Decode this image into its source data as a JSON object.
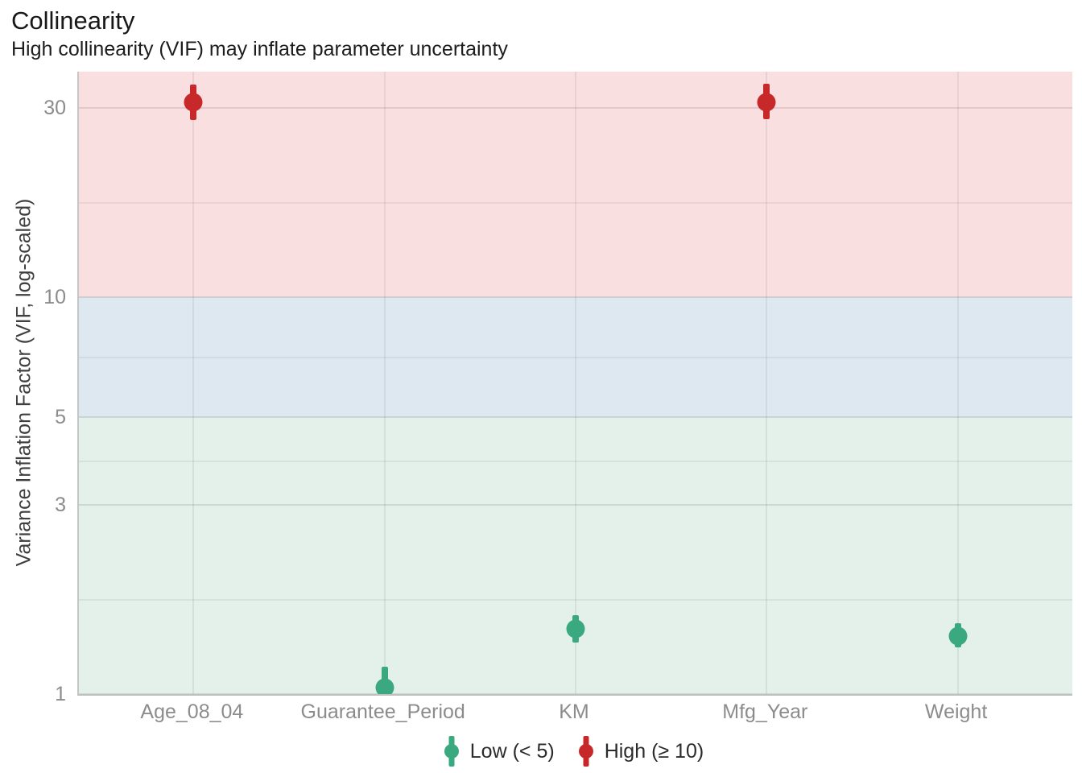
{
  "chart_data": {
    "type": "pointrange",
    "title": "Collinearity",
    "subtitle": "High collinearity (VIF) may inflate parameter uncertainty",
    "ylabel": "Variance Inflation Factor (VIF, log-scaled)",
    "xlabel": "",
    "categories": [
      "Age_08_04",
      "Guarantee_Period",
      "KM",
      "Mfg_Year",
      "Weight"
    ],
    "points": [
      {
        "category": "Age_08_04",
        "vif": 31.0,
        "ci_low": 28.0,
        "ci_high": 34.5,
        "level": "High"
      },
      {
        "category": "Guarantee_Period",
        "vif": 1.04,
        "ci_low": 0.98,
        "ci_high": 1.17,
        "level": "Low"
      },
      {
        "category": "KM",
        "vif": 1.46,
        "ci_low": 1.35,
        "ci_high": 1.58,
        "level": "Low"
      },
      {
        "category": "Mfg_Year",
        "vif": 31.1,
        "ci_low": 28.1,
        "ci_high": 34.6,
        "level": "High"
      },
      {
        "category": "Weight",
        "vif": 1.4,
        "ci_low": 1.31,
        "ci_high": 1.51,
        "level": "Low"
      }
    ],
    "y_axis": {
      "scale": "log10",
      "ticks": [
        30,
        10,
        5,
        3,
        1
      ],
      "minor_ticks": [
        17.32,
        7.07,
        3.87,
        1.73
      ],
      "range": [
        1,
        37.1
      ]
    },
    "bands": [
      {
        "from": 1,
        "to": 5,
        "color": "#e3f1ea",
        "meaning": "low"
      },
      {
        "from": 5,
        "to": 10,
        "color": "#dde8f1",
        "meaning": "moderate"
      },
      {
        "from": 10,
        "to": 37.1,
        "color": "#fadfe1",
        "meaning": "high"
      }
    ],
    "legend": [
      {
        "label": "Low (< 5)",
        "color": "#3aa97f"
      },
      {
        "label": "High (≥ 10)",
        "color": "#c7292b"
      }
    ],
    "level_colors": {
      "Low": "#3aa97f",
      "High": "#c7292b"
    },
    "grid": true,
    "legend_position": "bottom"
  }
}
